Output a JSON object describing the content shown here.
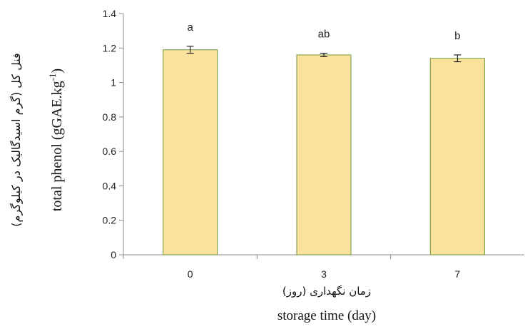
{
  "chart_data": {
    "type": "bar",
    "categories": [
      "0",
      "3",
      "7"
    ],
    "values": [
      1.19,
      1.16,
      1.14
    ],
    "errors": [
      0.02,
      0.01,
      0.02
    ],
    "significance": [
      "a",
      "ab",
      "b"
    ],
    "ylim": [
      0,
      1.4
    ],
    "y_ticks": [
      "0",
      "0.2",
      "0.4",
      "0.6",
      "0.8",
      "1",
      "1.2",
      "1.4"
    ],
    "xlabel_fa": "زمان نگهداری (روز)",
    "xlabel_en": "storage time (day)",
    "ylabel_fa": "فنل کل (گرم اسیدگالیک در کیلوگرم)",
    "ylabel_en_main": "total phenol (gGAE.kg",
    "ylabel_en_sup": "-1",
    "ylabel_en_end": ")",
    "grid": false,
    "colors": {
      "bar_fill": "#fbe29c",
      "bar_stroke": "#6f9a3c",
      "axis": "#8c8c8c"
    }
  }
}
